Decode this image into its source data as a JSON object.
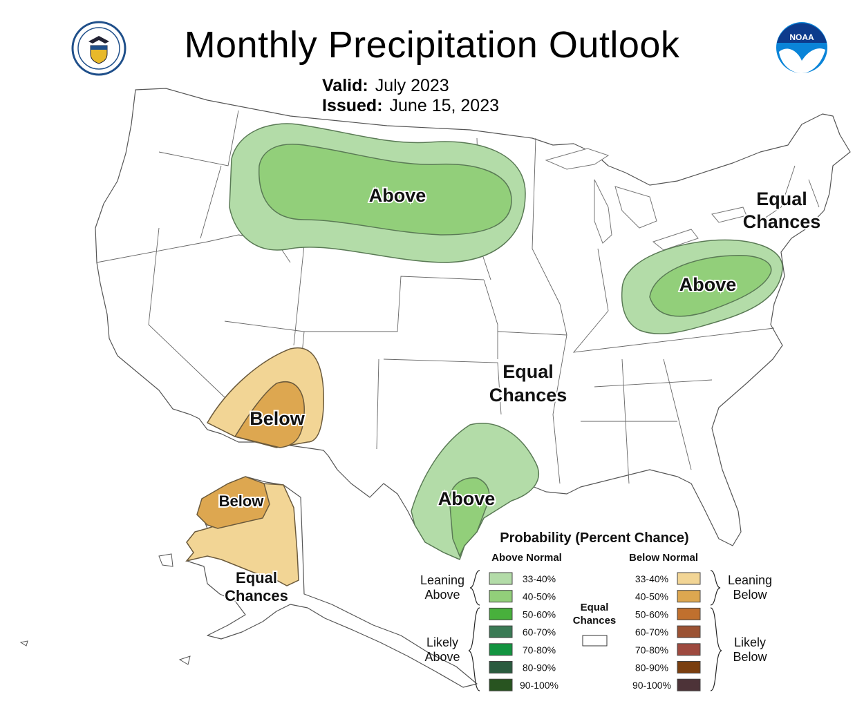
{
  "title": "Monthly Precipitation Outlook",
  "valid": {
    "label": "Valid:",
    "value": "July 2023"
  },
  "issued": {
    "label": "Issued:",
    "value": "June 15, 2023"
  },
  "logos": {
    "left": "department-of-commerce-seal",
    "right": "noaa-logo",
    "noaa_text": "NOAA"
  },
  "map_labels": {
    "north_plains": "Above",
    "northeast_line1": "Equal",
    "northeast_line2": "Chances",
    "mid_atlantic": "Above",
    "southwest": "Below",
    "south_central_line1": "Equal",
    "south_central_line2": "Chances",
    "texas": "Above",
    "alaska_west": "Below",
    "alaska_line1": "Equal",
    "alaska_line2": "Chances"
  },
  "legend": {
    "title": "Probability (Percent Chance)",
    "above_header": "Above Normal",
    "below_header": "Below Normal",
    "leaning_above": [
      "Leaning",
      "Above"
    ],
    "likely_above": [
      "Likely",
      "Above"
    ],
    "leaning_below": [
      "Leaning",
      "Below"
    ],
    "likely_below": [
      "Likely",
      "Below"
    ],
    "equal_chances": [
      "Equal",
      "Chances"
    ],
    "equal_color": "#ffffff",
    "above": [
      {
        "range": "33-40%",
        "color": "#b3dca8"
      },
      {
        "range": "40-50%",
        "color": "#92cf7a"
      },
      {
        "range": "50-60%",
        "color": "#48b03c"
      },
      {
        "range": "60-70%",
        "color": "#3a7a55"
      },
      {
        "range": "70-80%",
        "color": "#139440"
      },
      {
        "range": "80-90%",
        "color": "#2a5b3f"
      },
      {
        "range": "90-100%",
        "color": "#285420"
      }
    ],
    "below": [
      {
        "range": "33-40%",
        "color": "#f2d595"
      },
      {
        "range": "40-50%",
        "color": "#dda750"
      },
      {
        "range": "50-60%",
        "color": "#c0702e"
      },
      {
        "range": "60-70%",
        "color": "#9b5233"
      },
      {
        "range": "70-80%",
        "color": "#9e4a3f"
      },
      {
        "range": "80-90%",
        "color": "#7a3f10"
      },
      {
        "range": "90-100%",
        "color": "#4d3338"
      }
    ]
  }
}
